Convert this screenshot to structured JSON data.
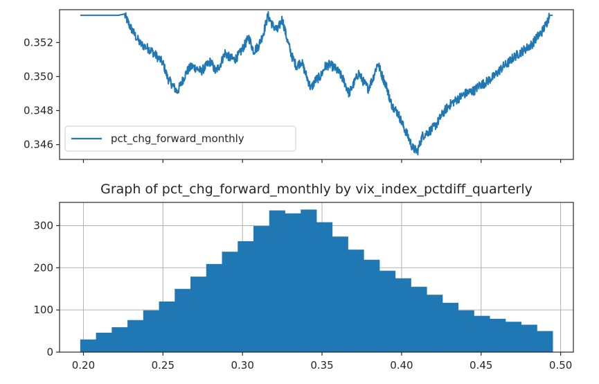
{
  "chart_data": [
    {
      "type": "line",
      "title": "",
      "xlabel": "",
      "ylabel": "",
      "xlim": [
        0.185,
        0.508
      ],
      "ylim": [
        0.34513,
        0.35393
      ],
      "yticks": [
        0.346,
        0.348,
        0.35,
        0.352
      ],
      "ytick_labels": [
        "0.346",
        "0.348",
        "0.350",
        "0.352"
      ],
      "xticks": [
        0.2,
        0.25,
        0.3,
        0.35,
        0.4,
        0.45,
        0.5
      ],
      "show_x_tick_labels": false,
      "grid": false,
      "legend": {
        "position": "lower-left",
        "entries": [
          "pct_chg_forward_monthly"
        ]
      },
      "series": [
        {
          "name": "pct_chg_forward_monthly",
          "color": "#1f77b4",
          "x": [
            0.198,
            0.208,
            0.218,
            0.226,
            0.229,
            0.232,
            0.236,
            0.24,
            0.243,
            0.246,
            0.25,
            0.253,
            0.256,
            0.259,
            0.262,
            0.265,
            0.268,
            0.271,
            0.274,
            0.277,
            0.28,
            0.283,
            0.286,
            0.289,
            0.292,
            0.295,
            0.298,
            0.301,
            0.304,
            0.307,
            0.31,
            0.313,
            0.316,
            0.319,
            0.322,
            0.325,
            0.328,
            0.331,
            0.334,
            0.337,
            0.34,
            0.343,
            0.346,
            0.349,
            0.352,
            0.355,
            0.358,
            0.361,
            0.364,
            0.367,
            0.37,
            0.373,
            0.376,
            0.379,
            0.382,
            0.385,
            0.388,
            0.391,
            0.393,
            0.395,
            0.398,
            0.401,
            0.404,
            0.407,
            0.41,
            0.413,
            0.416,
            0.419,
            0.422,
            0.425,
            0.428,
            0.431,
            0.434,
            0.437,
            0.44,
            0.443,
            0.446,
            0.449,
            0.452,
            0.455,
            0.458,
            0.461,
            0.464,
            0.467,
            0.47,
            0.473,
            0.476,
            0.479,
            0.482,
            0.485,
            0.488,
            0.491,
            0.493,
            0.495
          ],
          "values": [
            0.3536,
            0.3536,
            0.3536,
            0.3536,
            0.353,
            0.3525,
            0.3519,
            0.3517,
            0.3515,
            0.3512,
            0.3508,
            0.3499,
            0.3495,
            0.3491,
            0.3497,
            0.3503,
            0.3506,
            0.3505,
            0.3503,
            0.3506,
            0.3509,
            0.3503,
            0.3507,
            0.3514,
            0.3511,
            0.351,
            0.3513,
            0.3518,
            0.3523,
            0.3515,
            0.3518,
            0.3525,
            0.3536,
            0.353,
            0.3527,
            0.3534,
            0.3522,
            0.3512,
            0.3506,
            0.3509,
            0.3501,
            0.3493,
            0.3498,
            0.35,
            0.3506,
            0.3507,
            0.3505,
            0.3502,
            0.3497,
            0.349,
            0.3496,
            0.3502,
            0.3497,
            0.3493,
            0.3499,
            0.3508,
            0.35,
            0.3493,
            0.3485,
            0.3482,
            0.3478,
            0.3471,
            0.3465,
            0.3458,
            0.3456,
            0.3465,
            0.3467,
            0.3469,
            0.3472,
            0.3477,
            0.3481,
            0.3484,
            0.3486,
            0.3488,
            0.349,
            0.3491,
            0.3492,
            0.3495,
            0.3496,
            0.3498,
            0.35,
            0.3503,
            0.3506,
            0.3508,
            0.3511,
            0.3513,
            0.3515,
            0.3517,
            0.3519,
            0.3523,
            0.3526,
            0.3531,
            0.3536,
            0.3536
          ]
        }
      ]
    },
    {
      "type": "bar",
      "title": "Graph of pct_chg_forward_monthly by vix_index_pctdiff_quarterly",
      "xlabel": "",
      "ylabel": "",
      "xlim": [
        0.185,
        0.508
      ],
      "ylim": [
        0,
        355
      ],
      "xticks": [
        0.2,
        0.25,
        0.3,
        0.35,
        0.4,
        0.45,
        0.5
      ],
      "xtick_labels": [
        "0.20",
        "0.25",
        "0.30",
        "0.35",
        "0.40",
        "0.45",
        "0.50"
      ],
      "yticks": [
        0,
        100,
        200,
        300
      ],
      "ytick_labels": [
        "0",
        "100",
        "200",
        "300"
      ],
      "grid": true,
      "bar_color": "#1f77b4",
      "bin_edges": [
        0.198,
        0.2079,
        0.2178,
        0.2277,
        0.2376,
        0.2475,
        0.2574,
        0.2673,
        0.2772,
        0.2871,
        0.297,
        0.3069,
        0.3168,
        0.3267,
        0.3366,
        0.3465,
        0.3564,
        0.3663,
        0.3762,
        0.3861,
        0.396,
        0.4059,
        0.4158,
        0.4257,
        0.4356,
        0.4455,
        0.4554,
        0.4653,
        0.4752,
        0.4851,
        0.495
      ],
      "values": [
        30,
        46,
        59,
        76,
        99,
        120,
        150,
        179,
        209,
        238,
        263,
        299,
        336,
        329,
        338,
        308,
        274,
        243,
        219,
        193,
        175,
        155,
        136,
        117,
        99,
        86,
        79,
        72,
        65,
        50
      ]
    }
  ]
}
